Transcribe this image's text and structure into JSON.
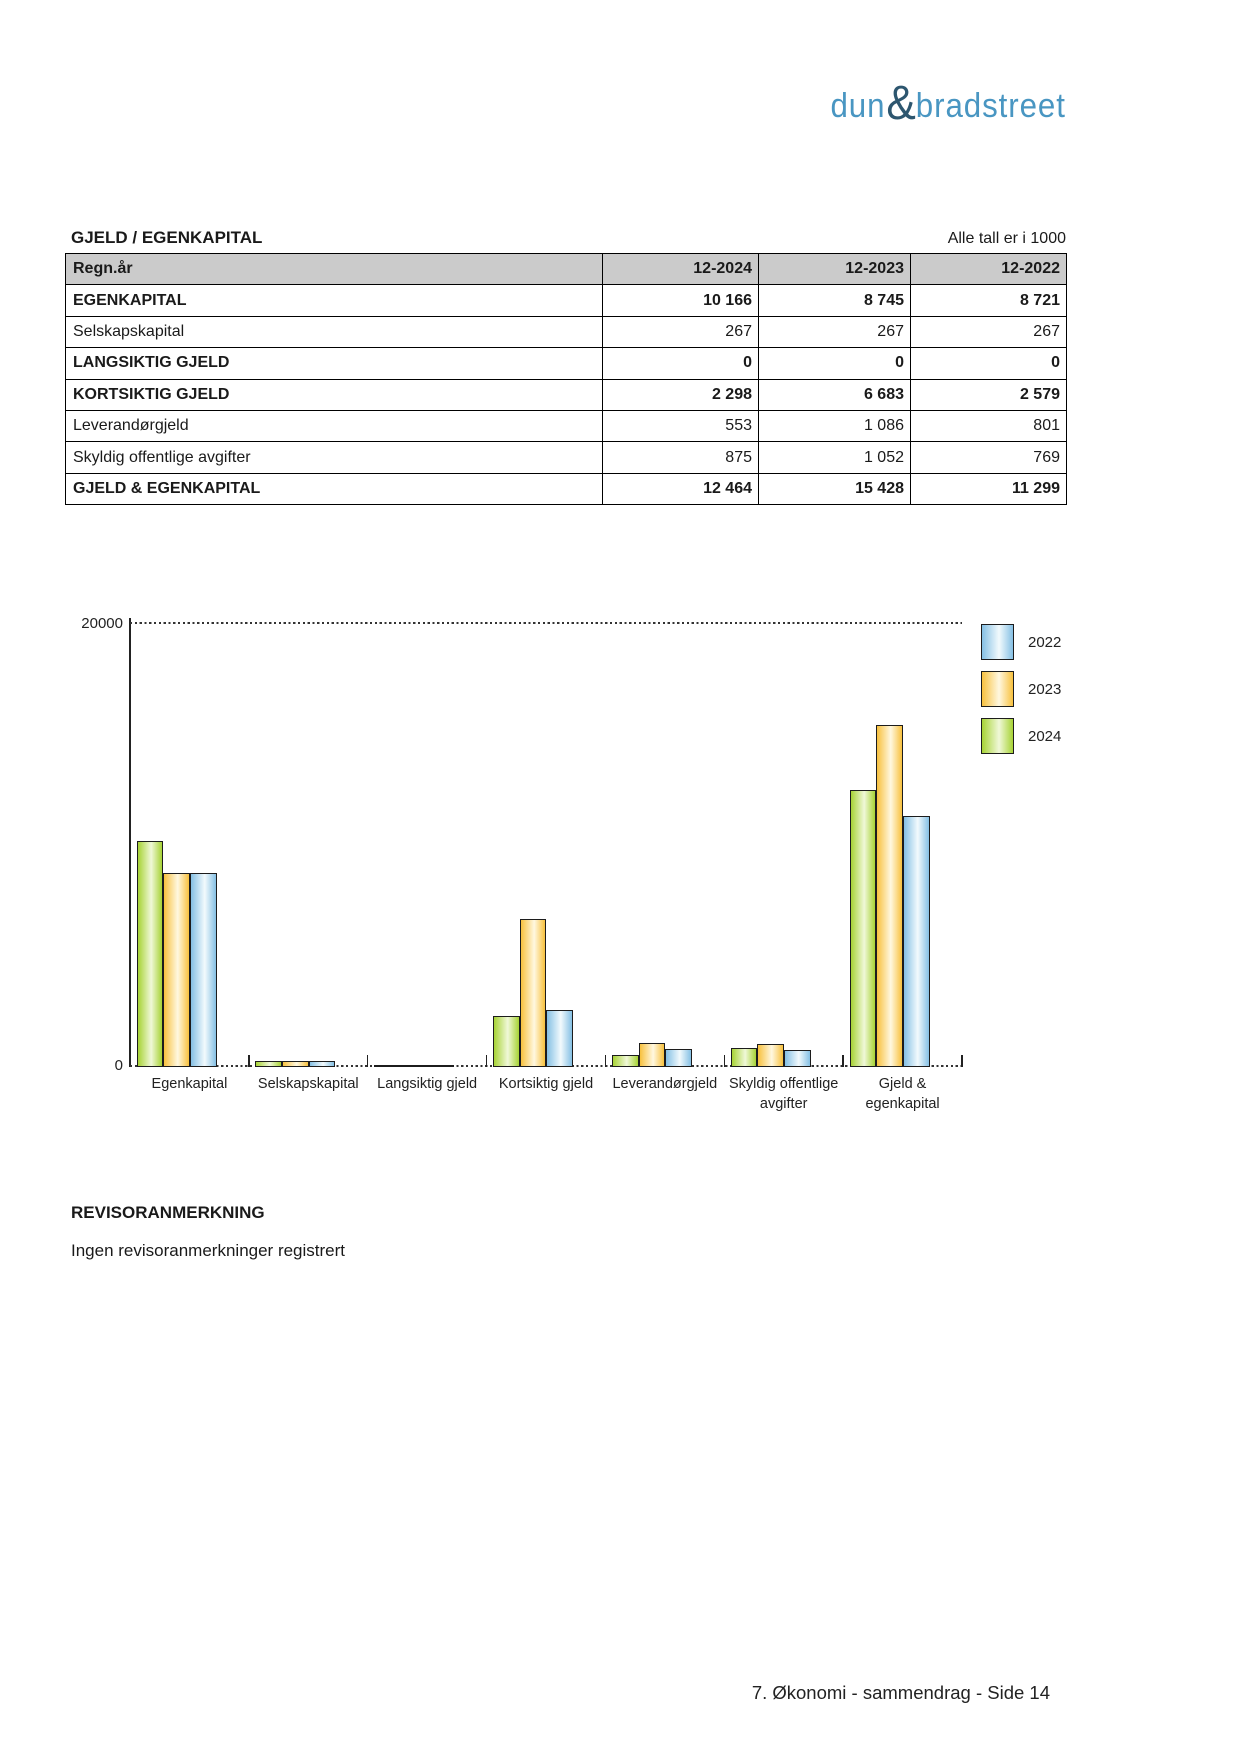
{
  "logo": {
    "part1": "dun",
    "amp": "&",
    "part2": "bradstreet"
  },
  "table": {
    "title": "GJELD / EGENKAPITAL",
    "unit_note": "Alle tall er i 1000",
    "header": {
      "label": "Regn.år",
      "cols": [
        "12-2024",
        "12-2023",
        "12-2022"
      ]
    },
    "rows": [
      {
        "label": "EGENKAPITAL",
        "values": [
          "10 166",
          "8 745",
          "8 721"
        ],
        "bold": true
      },
      {
        "label": "Selskapskapital",
        "values": [
          "267",
          "267",
          "267"
        ],
        "bold": false
      },
      {
        "label": "LANGSIKTIG GJELD",
        "values": [
          "0",
          "0",
          "0"
        ],
        "bold": true
      },
      {
        "label": "KORTSIKTIG GJELD",
        "values": [
          "2 298",
          "6 683",
          "2 579"
        ],
        "bold": true
      },
      {
        "label": "Leverandørgjeld",
        "values": [
          "553",
          "1 086",
          "801"
        ],
        "bold": false
      },
      {
        "label": "Skyldig offentlige avgifter",
        "values": [
          "875",
          "1 052",
          "769"
        ],
        "bold": false
      },
      {
        "label": "GJELD & EGENKAPITAL",
        "values": [
          "12 464",
          "15 428",
          "11 299"
        ],
        "bold": true
      }
    ]
  },
  "chart_data": {
    "type": "bar",
    "categories": [
      "Egenkapital",
      "Selskapskapital",
      "Langsiktig gjeld",
      "Kortsiktig gjeld",
      "Leverandørgjeld",
      "Skyldig offentlige\navgifter",
      "Gjeld &\negenkapital"
    ],
    "series": [
      {
        "name": "2022",
        "values": [
          8721,
          267,
          0,
          2579,
          801,
          769,
          11299
        ],
        "color_edge": "#85c0e4",
        "color_mid": "#f2fafd"
      },
      {
        "name": "2023",
        "values": [
          8745,
          267,
          0,
          6683,
          1086,
          1052,
          15428
        ],
        "color_edge": "#f8c13e",
        "color_mid": "#fff8e0"
      },
      {
        "name": "2024",
        "values": [
          10166,
          267,
          0,
          2298,
          553,
          875,
          12464
        ],
        "color_edge": "#a7d335",
        "color_mid": "#f0f8d8"
      }
    ],
    "ylim": [
      0,
      20000
    ],
    "ytick_labels": [
      "20000",
      "0"
    ],
    "legend_position": "top-right",
    "grid": "dotted-top-and-bottom"
  },
  "revisor": {
    "heading": "REVISORANMERKNING",
    "text": "Ingen revisoranmerkninger registrert"
  },
  "footer": {
    "text": "7. Økonomi - sammendrag - Side 14"
  }
}
